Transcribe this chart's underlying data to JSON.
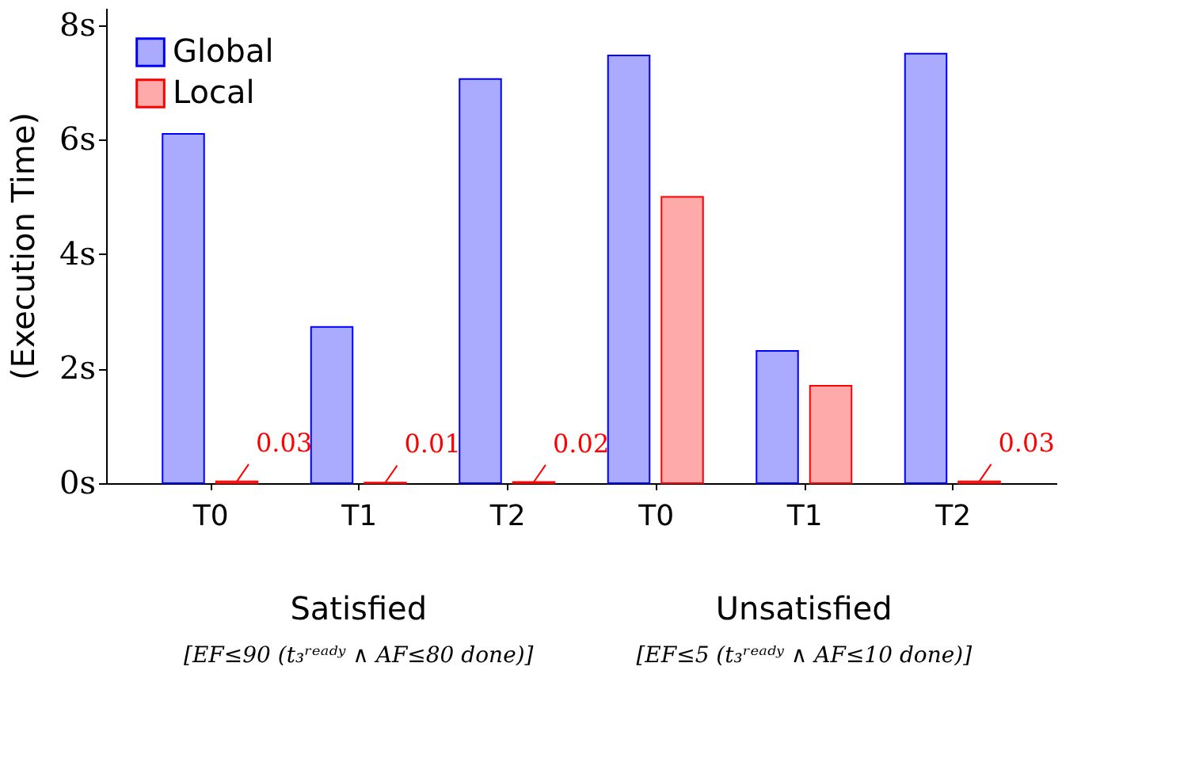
{
  "chart_data": {
    "type": "bar",
    "ylabel": "(Execution Time)",
    "categories": [
      "T0",
      "T1",
      "T2",
      "T0",
      "T1",
      "T2"
    ],
    "series": [
      {
        "name": "Global",
        "color": "#aaaaff",
        "values": [
          6.1,
          2.73,
          7.06,
          7.47,
          2.31,
          7.5
        ]
      },
      {
        "name": "Local",
        "color": "#ffaaaa",
        "values": [
          0.03,
          0.01,
          0.02,
          5.0,
          1.7,
          0.03
        ],
        "value_labels": [
          "0.03",
          "0.01",
          "0.02",
          null,
          null,
          "0.03"
        ]
      }
    ],
    "ylim": [
      0,
      8.3
    ],
    "yticks": [
      {
        "value": 0,
        "label": "0s"
      },
      {
        "value": 2,
        "label": "2s"
      },
      {
        "value": 4,
        "label": "4s"
      },
      {
        "value": 6,
        "label": "6s"
      },
      {
        "value": 8,
        "label": "8s"
      }
    ],
    "annotations": [
      "Satisfied",
      "[EF≤90 (t₃ʳᵉᵃᵈʸ ∧ AF≤80 done)]",
      "Unsatisfied",
      "[EF≤5 (t₃ʳᵉᵃᵈʸ ∧ AF≤10 done)]"
    ],
    "legend": "top left",
    "grid": false
  }
}
